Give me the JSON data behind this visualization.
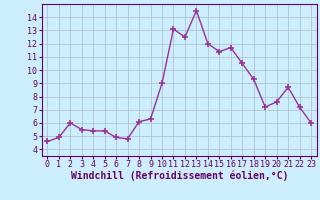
{
  "x": [
    0,
    1,
    2,
    3,
    4,
    5,
    6,
    7,
    8,
    9,
    10,
    11,
    12,
    13,
    14,
    15,
    16,
    17,
    18,
    19,
    20,
    21,
    22,
    23
  ],
  "y": [
    4.6,
    4.9,
    6.0,
    5.5,
    5.4,
    5.4,
    4.9,
    4.8,
    6.1,
    6.3,
    9.0,
    13.1,
    12.5,
    14.5,
    12.0,
    11.4,
    11.7,
    10.5,
    9.3,
    7.2,
    7.6,
    8.7,
    7.2,
    6.0
  ],
  "line_color": "#993399",
  "marker": "+",
  "markersize": 4,
  "linewidth": 1.0,
  "bg_color": "#cceeff",
  "grid_color": "#aabbcc",
  "xlabel": "Windchill (Refroidissement éolien,°C)",
  "ylim": [
    3.5,
    15.0
  ],
  "xlim": [
    -0.5,
    23.5
  ],
  "yticks": [
    4,
    5,
    6,
    7,
    8,
    9,
    10,
    11,
    12,
    13,
    14
  ],
  "xticks": [
    0,
    1,
    2,
    3,
    4,
    5,
    6,
    7,
    8,
    9,
    10,
    11,
    12,
    13,
    14,
    15,
    16,
    17,
    18,
    19,
    20,
    21,
    22,
    23
  ],
  "tick_fontsize": 6.0,
  "xlabel_fontsize": 7.0,
  "label_color": "#660066",
  "spine_color": "#660066"
}
